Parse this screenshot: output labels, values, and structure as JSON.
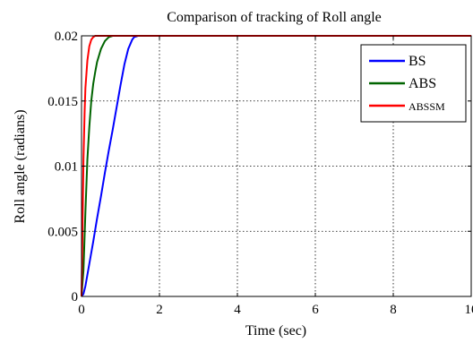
{
  "chart_data": {
    "type": "line",
    "title": "Comparison of tracking of Roll angle",
    "xlabel": "Time (sec)",
    "ylabel": "Roll angle (radians)",
    "xlim": [
      0,
      10
    ],
    "ylim": [
      0,
      0.02
    ],
    "xticks": [
      0,
      2,
      4,
      6,
      8,
      10
    ],
    "xtick_labels": [
      "0",
      "2",
      "4",
      "6",
      "8",
      "10"
    ],
    "yticks": [
      0,
      0.005,
      0.01,
      0.015,
      0.02
    ],
    "ytick_labels": [
      "0",
      "0.005",
      "0.01",
      "0.015",
      "0.02"
    ],
    "grid": true,
    "grid_style": "dotted",
    "legend_position": "top-right",
    "series": [
      {
        "name": "BS",
        "color": "#0000ff",
        "x": [
          0,
          0.05,
          0.1,
          0.2,
          0.3,
          0.4,
          0.5,
          0.6,
          0.7,
          0.8,
          0.9,
          1.0,
          1.1,
          1.2,
          1.3,
          1.35,
          1.45,
          1.6,
          10
        ],
        "y": [
          0,
          0.0002,
          0.0008,
          0.0025,
          0.0042,
          0.006,
          0.0077,
          0.0095,
          0.0112,
          0.0128,
          0.0145,
          0.0162,
          0.0178,
          0.019,
          0.0197,
          0.0199,
          0.02,
          0.02,
          0.02
        ]
      },
      {
        "name": "ABS",
        "color": "#006400",
        "x": [
          0,
          0.05,
          0.1,
          0.15,
          0.2,
          0.25,
          0.3,
          0.35,
          0.4,
          0.5,
          0.6,
          0.7,
          0.8,
          0.9,
          10
        ],
        "y": [
          0,
          0.002,
          0.0065,
          0.0105,
          0.013,
          0.015,
          0.0163,
          0.0172,
          0.018,
          0.019,
          0.0196,
          0.0199,
          0.02,
          0.02,
          0.02
        ]
      },
      {
        "name": "ABSSM",
        "color": "#ff0000",
        "x": [
          0,
          0.02,
          0.05,
          0.08,
          0.1,
          0.15,
          0.2,
          0.25,
          0.3,
          0.35,
          0.4,
          0.5,
          10
        ],
        "y": [
          0,
          0.004,
          0.0105,
          0.0142,
          0.016,
          0.0181,
          0.0192,
          0.0197,
          0.0199,
          0.02,
          0.02,
          0.02,
          0.02
        ]
      }
    ]
  }
}
